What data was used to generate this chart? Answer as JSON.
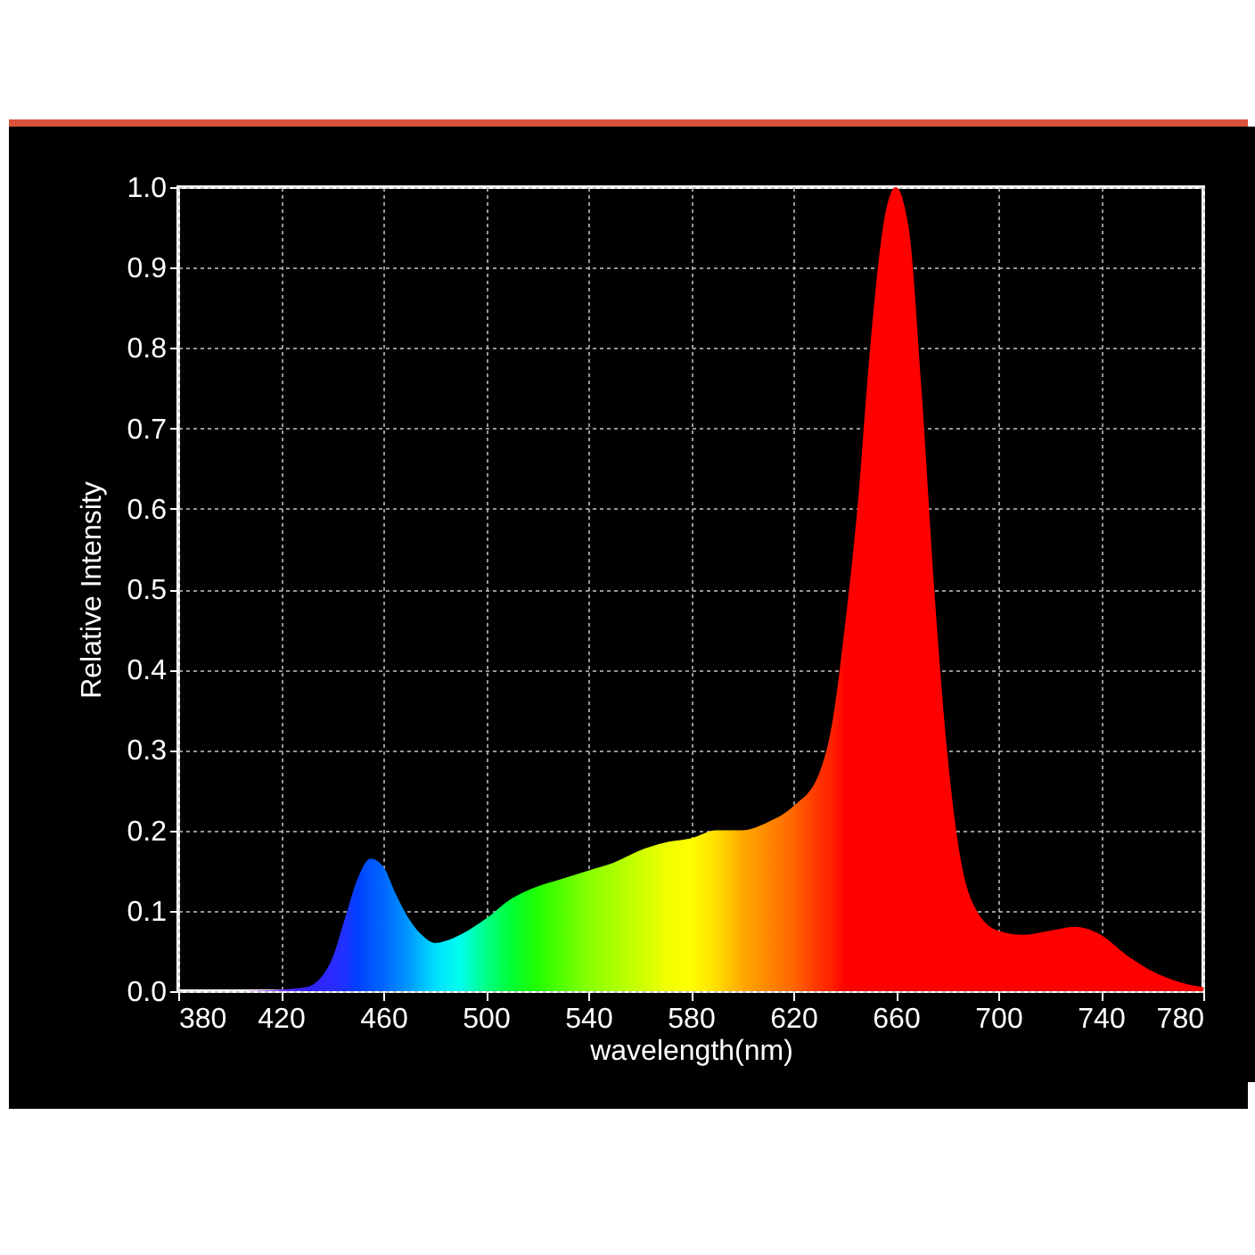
{
  "chart_data": {
    "type": "area",
    "xlabel": "wavelength(nm)",
    "ylabel": "Relative Intensity",
    "grid": true,
    "xlim": [
      380,
      780
    ],
    "xticks": [
      380,
      420,
      460,
      500,
      540,
      580,
      620,
      660,
      700,
      740,
      780
    ],
    "ylim": [
      0,
      1
    ],
    "yticks": [
      {
        "value": 0,
        "label": "0.0"
      },
      0.1,
      0.2,
      0.3,
      0.4,
      0.5,
      0.6,
      0.7,
      0.8,
      0.9,
      {
        "value": 1,
        "label": "1.0"
      }
    ],
    "series": [
      {
        "x": [
          380,
          400,
          420,
          430,
          440,
          445,
          450,
          455,
          460,
          465,
          470,
          475,
          480,
          490,
          500,
          510,
          520,
          530,
          540,
          550,
          560,
          570,
          580,
          590,
          600,
          610,
          620,
          630,
          635,
          640,
          645,
          650,
          655,
          660,
          665,
          670,
          675,
          680,
          685,
          690,
          700,
          710,
          720,
          730,
          740,
          750,
          760,
          770,
          780
        ],
        "values": [
          0,
          0,
          0.002,
          0.005,
          0.04,
          0.09,
          0.14,
          0.165,
          0.155,
          0.12,
          0.09,
          0.07,
          0.06,
          0.07,
          0.09,
          0.115,
          0.13,
          0.14,
          0.15,
          0.16,
          0.175,
          0.185,
          0.19,
          0.2,
          0.2,
          0.21,
          0.23,
          0.27,
          0.33,
          0.45,
          0.6,
          0.8,
          0.95,
          1.0,
          0.95,
          0.75,
          0.5,
          0.3,
          0.17,
          0.11,
          0.075,
          0.07,
          0.075,
          0.08,
          0.07,
          0.045,
          0.025,
          0.012,
          0.005
        ],
        "colors": [
          "#ff99ff",
          "#cc66ff",
          "#6633ff",
          "#3322ff",
          "#2a2aff",
          "#1f33ff",
          "#0040ff",
          "#0055ff",
          "#0066ff",
          "#0080ff",
          "#0099ff",
          "#00bbff",
          "#00ddff",
          "#00ffee",
          "#00ff88",
          "#00ff33",
          "#22ff00",
          "#55ff00",
          "#88ff00",
          "#aaff00",
          "#ccff00",
          "#eeff00",
          "#ffff00",
          "#ffdd00",
          "#ffaa00",
          "#ff8800",
          "#ff6600",
          "#ff3300",
          "#ff2200",
          "#ff0000",
          "#ff0000",
          "#ff0000",
          "#ff0000",
          "#ff0000",
          "#ff0000",
          "#ff0000",
          "#ff0000",
          "#ff0000",
          "#ff0000",
          "#ff0000",
          "#ff0000",
          "#ff0000",
          "#ff0000",
          "#ff0000",
          "#ff0000",
          "#ff0000",
          "#ff0000",
          "#ff0000",
          "#ff0000"
        ]
      }
    ]
  }
}
